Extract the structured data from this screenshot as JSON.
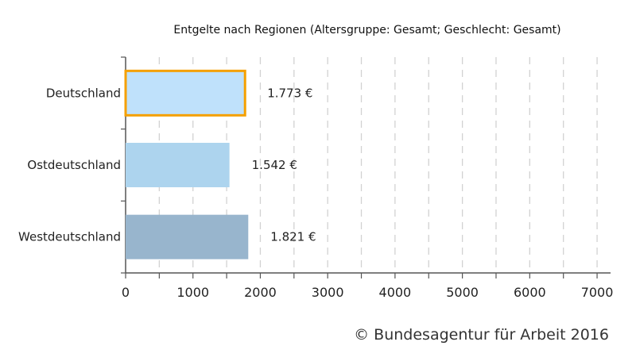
{
  "chart_data": {
    "type": "bar",
    "orientation": "horizontal",
    "title": "Entgelte nach Regionen (Altersgruppe: Gesamt; Geschlecht: Gesamt)",
    "categories": [
      "Deutschland",
      "Ostdeutschland",
      "Westdeutschland"
    ],
    "values": [
      1773,
      1542,
      1821
    ],
    "value_labels": [
      "1.773 €",
      "1.542 €",
      "1.821 €"
    ],
    "bar_colors": [
      "#bfe1fb",
      "#add4ee",
      "#98b5cd"
    ],
    "highlight_index": 0,
    "highlight_color": "#f5a000",
    "xlim": [
      0,
      7200
    ],
    "x_ticks": [
      0,
      1000,
      2000,
      3000,
      4000,
      5000,
      6000,
      7000
    ],
    "grid": true,
    "xlabel": "",
    "ylabel": ""
  },
  "footer": {
    "copyright": "© Bundesagentur für Arbeit 2016"
  }
}
